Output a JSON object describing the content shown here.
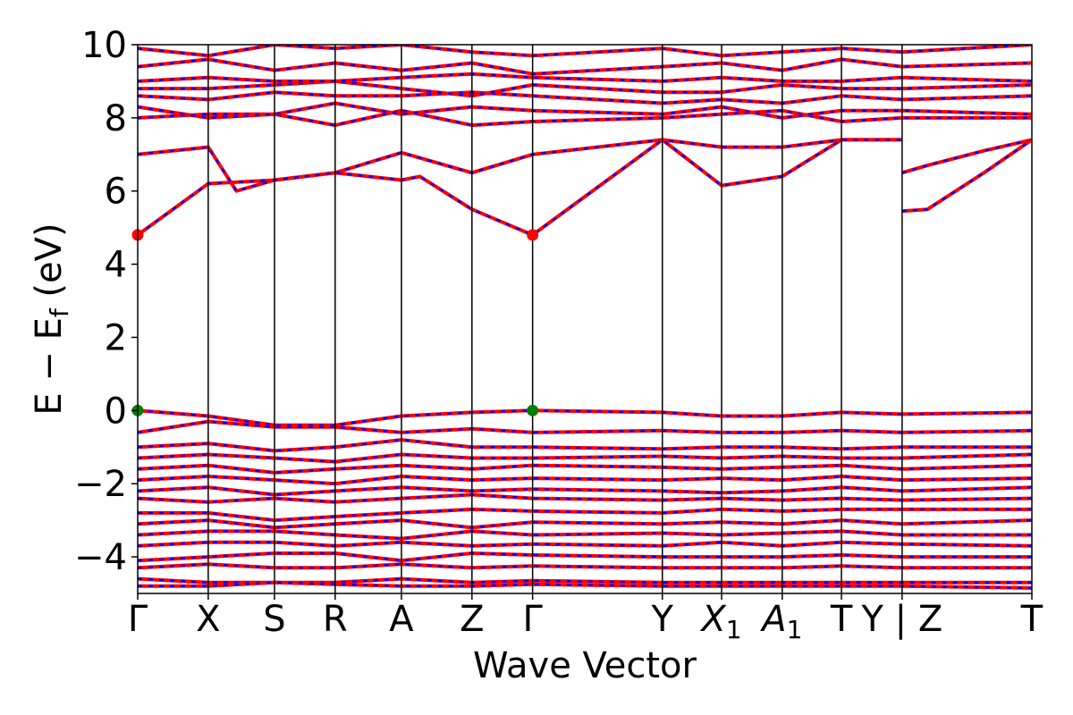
{
  "chart_data": {
    "type": "line",
    "xlabel": "Wave Vector",
    "ylabel": "E − E_f (eV)",
    "ylabel_main": "E − E",
    "ylabel_sub": "f",
    "ylabel_tail": " (eV)",
    "ylim": [
      -5,
      10
    ],
    "yticks": [
      -4,
      -2,
      0,
      2,
      4,
      6,
      8,
      10
    ],
    "ytick_labels": [
      "−4",
      "−2",
      "0",
      "2",
      "4",
      "6",
      "8",
      "10"
    ],
    "kpoints": [
      {
        "label": "Γ",
        "x": 0.0
      },
      {
        "label": "X",
        "x": 0.5
      },
      {
        "label": "S",
        "x": 0.97
      },
      {
        "label": "R",
        "x": 1.4
      },
      {
        "label": "A",
        "x": 1.87
      },
      {
        "label": "Z",
        "x": 2.37
      },
      {
        "label": "Γ",
        "x": 2.8
      },
      {
        "label": "Y",
        "x": 3.72
      },
      {
        "label": "X1",
        "x": 4.14,
        "sub": "1",
        "main": "X",
        "italic": true
      },
      {
        "label": "A1",
        "x": 4.57,
        "sub": "1",
        "main": "A",
        "italic": true
      },
      {
        "label": "T",
        "x": 4.99
      },
      {
        "label": "Y | Z",
        "x": 5.42
      },
      {
        "label": "T",
        "x": 6.34
      }
    ],
    "xlim": [
      0,
      6.34
    ],
    "grid": false,
    "legend": "none",
    "line_colors": {
      "primary": "#ff0000",
      "secondary": "#0000ff"
    },
    "markers": [
      {
        "x": 0.0,
        "y": 4.8,
        "color": "#ff0000"
      },
      {
        "x": 2.8,
        "y": 4.8,
        "color": "#ff0000"
      },
      {
        "x": 0.0,
        "y": 0.0,
        "color": "#008000"
      },
      {
        "x": 2.8,
        "y": 0.0,
        "color": "#008000"
      }
    ],
    "series": [
      {
        "x": [
          0,
          0.5,
          0.97,
          1.4,
          1.87,
          2.37,
          2.8,
          3.72,
          4.14,
          4.57,
          4.99,
          5.42
        ],
        "y": [
          4.8,
          6.2,
          6.3,
          6.5,
          7.05,
          6.5,
          7.0,
          7.4,
          7.2,
          7.2,
          7.4,
          7.4
        ]
      },
      {
        "x": [
          0,
          0.5,
          0.7,
          0.97,
          1.4,
          1.87,
          2.0,
          2.37,
          2.8,
          3.72,
          4.14,
          4.57,
          4.99,
          5.42
        ],
        "y": [
          7.0,
          7.2,
          6.0,
          6.3,
          6.5,
          6.3,
          6.4,
          5.5,
          4.8,
          7.4,
          6.15,
          6.4,
          7.4,
          7.4
        ]
      },
      {
        "x": [
          5.42,
          5.6,
          6.0,
          6.34
        ],
        "y": [
          6.5,
          6.7,
          7.1,
          7.4
        ]
      },
      {
        "x": [
          5.42,
          5.6,
          6.0,
          6.34
        ],
        "y": [
          5.45,
          5.5,
          6.5,
          7.4
        ]
      },
      {
        "x": [
          0,
          0.5,
          0.97,
          1.4,
          1.87,
          2.37,
          2.8,
          3.72,
          4.14,
          4.57,
          4.99,
          5.42,
          6.34
        ],
        "y": [
          8.0,
          8.1,
          8.1,
          7.8,
          8.2,
          7.8,
          7.9,
          8.0,
          8.1,
          8.2,
          7.9,
          8.0,
          8.0
        ]
      },
      {
        "x": [
          0,
          0.5,
          0.97,
          1.4,
          1.87,
          2.37,
          2.8,
          3.72,
          4.14,
          4.57,
          4.99,
          5.42,
          6.34
        ],
        "y": [
          8.3,
          8.0,
          8.1,
          8.4,
          8.1,
          8.3,
          8.2,
          8.1,
          8.3,
          8.0,
          8.2,
          8.2,
          8.1
        ]
      },
      {
        "x": [
          0,
          0.5,
          0.97,
          1.4,
          1.87,
          2.37,
          2.8,
          3.72,
          4.14,
          4.57,
          4.99,
          5.42,
          6.34
        ],
        "y": [
          8.6,
          8.5,
          8.7,
          8.6,
          8.6,
          8.7,
          8.6,
          8.4,
          8.5,
          8.4,
          8.6,
          8.5,
          8.6
        ]
      },
      {
        "x": [
          0,
          0.5,
          0.97,
          1.4,
          1.87,
          2.37,
          2.8,
          3.72,
          4.14,
          4.57,
          4.99,
          5.42,
          6.34
        ],
        "y": [
          8.8,
          8.8,
          8.9,
          9.0,
          8.8,
          8.6,
          8.9,
          8.7,
          8.7,
          8.9,
          8.8,
          8.8,
          8.9
        ]
      },
      {
        "x": [
          0,
          0.5,
          0.97,
          1.4,
          1.87,
          2.37,
          2.8,
          3.72,
          4.14,
          4.57,
          4.99,
          5.42,
          6.34
        ],
        "y": [
          9.0,
          9.1,
          9.0,
          9.0,
          9.1,
          9.2,
          9.1,
          9.0,
          9.1,
          9.0,
          9.0,
          9.1,
          9.0
        ]
      },
      {
        "x": [
          0,
          0.5,
          0.97,
          1.4,
          1.87,
          2.37,
          2.8,
          3.72,
          4.14,
          4.57,
          4.99,
          5.42,
          6.34
        ],
        "y": [
          9.4,
          9.6,
          9.3,
          9.5,
          9.3,
          9.5,
          9.2,
          9.4,
          9.5,
          9.3,
          9.6,
          9.4,
          9.5
        ]
      },
      {
        "x": [
          0,
          0.5,
          0.97,
          1.4,
          1.87,
          2.37,
          2.8,
          3.72,
          4.14,
          4.57,
          4.99,
          5.42,
          6.34
        ],
        "y": [
          9.9,
          9.7,
          10.0,
          9.9,
          10.0,
          9.8,
          9.7,
          9.9,
          9.7,
          9.8,
          9.9,
          9.8,
          10.0
        ]
      },
      {
        "x": [
          0,
          0.5,
          0.97,
          1.4,
          1.87,
          2.37,
          2.8,
          3.72,
          4.14,
          4.57,
          4.99,
          5.42,
          6.34
        ],
        "y": [
          0.0,
          -0.15,
          -0.4,
          -0.4,
          -0.15,
          -0.05,
          0.0,
          -0.05,
          -0.15,
          -0.15,
          -0.05,
          -0.1,
          -0.05
        ]
      },
      {
        "x": [
          0,
          0.5,
          0.97,
          1.4,
          1.87,
          2.37,
          2.8,
          3.72,
          4.14,
          4.57,
          4.99,
          5.42,
          6.34
        ],
        "y": [
          -0.6,
          -0.3,
          -0.45,
          -0.45,
          -0.6,
          -0.5,
          -0.6,
          -0.55,
          -0.6,
          -0.6,
          -0.55,
          -0.6,
          -0.55
        ]
      },
      {
        "x": [
          0,
          0.5,
          0.97,
          1.4,
          1.87,
          2.37,
          2.8,
          3.72,
          4.14,
          4.57,
          4.99,
          5.42,
          6.34
        ],
        "y": [
          -1.0,
          -0.9,
          -1.1,
          -1.0,
          -0.8,
          -1.0,
          -1.0,
          -1.05,
          -1.0,
          -1.0,
          -1.05,
          -1.0,
          -1.0
        ]
      },
      {
        "x": [
          0,
          0.5,
          0.97,
          1.4,
          1.87,
          2.37,
          2.8,
          3.72,
          4.14,
          4.57,
          4.99,
          5.42,
          6.34
        ],
        "y": [
          -1.3,
          -1.2,
          -1.3,
          -1.4,
          -1.2,
          -1.3,
          -1.3,
          -1.25,
          -1.3,
          -1.25,
          -1.3,
          -1.3,
          -1.2
        ]
      },
      {
        "x": [
          0,
          0.5,
          0.97,
          1.4,
          1.87,
          2.37,
          2.8,
          3.72,
          4.14,
          4.57,
          4.99,
          5.42,
          6.34
        ],
        "y": [
          -1.6,
          -1.5,
          -1.7,
          -1.6,
          -1.5,
          -1.6,
          -1.5,
          -1.55,
          -1.6,
          -1.55,
          -1.5,
          -1.6,
          -1.5
        ]
      },
      {
        "x": [
          0,
          0.5,
          0.97,
          1.4,
          1.87,
          2.37,
          2.8,
          3.72,
          4.14,
          4.57,
          4.99,
          5.42,
          6.34
        ],
        "y": [
          -1.9,
          -1.8,
          -1.9,
          -2.0,
          -1.8,
          -1.9,
          -1.85,
          -1.9,
          -1.85,
          -1.9,
          -1.8,
          -1.9,
          -1.85
        ]
      },
      {
        "x": [
          0,
          0.5,
          0.97,
          1.4,
          1.87,
          2.37,
          2.8,
          3.72,
          4.14,
          4.57,
          4.99,
          5.42,
          6.34
        ],
        "y": [
          -2.2,
          -2.1,
          -2.3,
          -2.2,
          -2.1,
          -2.2,
          -2.15,
          -2.2,
          -2.25,
          -2.2,
          -2.1,
          -2.2,
          -2.1
        ]
      },
      {
        "x": [
          0,
          0.5,
          0.97,
          1.4,
          1.87,
          2.37,
          2.8,
          3.72,
          4.14,
          4.57,
          4.99,
          5.42,
          6.34
        ],
        "y": [
          -2.4,
          -2.5,
          -2.4,
          -2.5,
          -2.4,
          -2.3,
          -2.4,
          -2.45,
          -2.4,
          -2.45,
          -2.4,
          -2.45,
          -2.4
        ]
      },
      {
        "x": [
          0,
          0.5,
          0.97,
          1.4,
          1.87,
          2.37,
          2.8,
          3.72,
          4.14,
          4.57,
          4.99,
          5.42,
          6.34
        ],
        "y": [
          -2.8,
          -2.8,
          -3.0,
          -2.9,
          -2.8,
          -2.7,
          -2.75,
          -2.8,
          -2.7,
          -2.75,
          -2.7,
          -2.7,
          -2.7
        ]
      },
      {
        "x": [
          0,
          0.5,
          0.97,
          1.4,
          1.87,
          2.37,
          2.8,
          3.72,
          4.14,
          4.57,
          4.99,
          5.42,
          6.34
        ],
        "y": [
          -3.1,
          -3.0,
          -3.2,
          -3.1,
          -3.0,
          -3.2,
          -3.05,
          -3.1,
          -3.05,
          -3.1,
          -3.0,
          -3.1,
          -3.0
        ]
      },
      {
        "x": [
          0,
          0.5,
          0.97,
          1.4,
          1.87,
          2.37,
          2.8,
          3.72,
          4.14,
          4.57,
          4.99,
          5.42,
          6.34
        ],
        "y": [
          -3.4,
          -3.3,
          -3.3,
          -3.4,
          -3.5,
          -3.3,
          -3.4,
          -3.35,
          -3.4,
          -3.35,
          -3.3,
          -3.4,
          -3.4
        ]
      },
      {
        "x": [
          0,
          0.5,
          0.97,
          1.4,
          1.87,
          2.37,
          2.8,
          3.72,
          4.14,
          4.57,
          4.99,
          5.42,
          6.34
        ],
        "y": [
          -3.7,
          -3.6,
          -3.6,
          -3.7,
          -3.6,
          -3.7,
          -3.65,
          -3.7,
          -3.6,
          -3.7,
          -3.6,
          -3.65,
          -3.7
        ]
      },
      {
        "x": [
          0,
          0.5,
          0.97,
          1.4,
          1.87,
          2.37,
          2.8,
          3.72,
          4.14,
          4.57,
          4.99,
          5.42,
          6.34
        ],
        "y": [
          -4.1,
          -4.0,
          -3.9,
          -3.9,
          -4.1,
          -3.9,
          -3.95,
          -4.0,
          -4.0,
          -4.0,
          -3.95,
          -4.0,
          -4.0
        ]
      },
      {
        "x": [
          0,
          0.5,
          0.97,
          1.4,
          1.87,
          2.37,
          2.8,
          3.72,
          4.14,
          4.57,
          4.99,
          5.42,
          6.34
        ],
        "y": [
          -4.3,
          -4.2,
          -4.3,
          -4.3,
          -4.2,
          -4.3,
          -4.25,
          -4.3,
          -4.3,
          -4.3,
          -4.25,
          -4.3,
          -4.3
        ]
      },
      {
        "x": [
          0,
          0.5,
          0.97,
          1.4,
          1.87,
          2.37,
          2.8,
          3.72,
          4.14,
          4.57,
          4.99,
          5.42,
          6.34
        ],
        "y": [
          -4.6,
          -4.7,
          -4.7,
          -4.7,
          -4.6,
          -4.7,
          -4.65,
          -4.7,
          -4.7,
          -4.7,
          -4.7,
          -4.7,
          -4.7
        ]
      },
      {
        "x": [
          0,
          0.5,
          0.97,
          1.4,
          1.87,
          2.37,
          2.8,
          3.72,
          4.14,
          4.57,
          4.99,
          5.42,
          6.34
        ],
        "y": [
          -4.8,
          -4.8,
          -4.7,
          -4.75,
          -4.8,
          -4.8,
          -4.75,
          -4.8,
          -4.8,
          -4.8,
          -4.8,
          -4.8,
          -4.85
        ]
      }
    ]
  }
}
